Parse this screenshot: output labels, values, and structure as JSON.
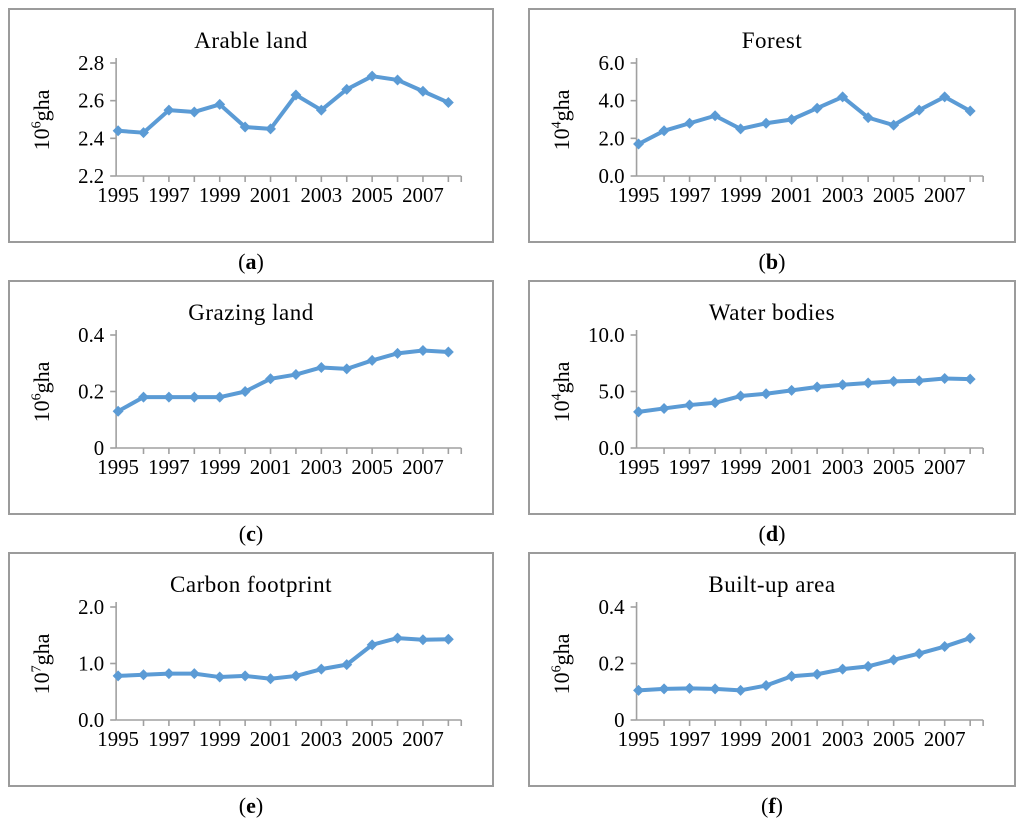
{
  "style": {
    "line_color": "#5B9BD5",
    "axis_color": "#a0a0a0",
    "border_color": "#9b9b9b",
    "text_color": "#000000"
  },
  "figure": {
    "caption_open": "(",
    "caption_close": ")"
  },
  "chart_data": [
    {
      "type": "line",
      "title": "Arable land",
      "caption_letter": "a",
      "ylabel_base": "10",
      "ylabel_exp": "6",
      "ylabel_unit": "gha",
      "x": [
        1995,
        1996,
        1997,
        1998,
        1999,
        2000,
        2001,
        2002,
        2003,
        2004,
        2005,
        2006,
        2007,
        2008
      ],
      "x_labels": [
        "1995",
        "1997",
        "1999",
        "2001",
        "2003",
        "2005",
        "2007"
      ],
      "values": [
        2.44,
        2.43,
        2.55,
        2.54,
        2.58,
        2.46,
        2.45,
        2.63,
        2.55,
        2.66,
        2.73,
        2.71,
        2.65,
        2.59
      ],
      "ylim": [
        2.2,
        2.8
      ],
      "ytick_values": [
        2.2,
        2.4,
        2.6,
        2.8
      ],
      "ytick_labels": [
        "2.2",
        "2.4",
        "2.6",
        "2.8"
      ],
      "grid": false,
      "legend": "none"
    },
    {
      "type": "line",
      "title": "Forest",
      "caption_letter": "b",
      "ylabel_base": "10",
      "ylabel_exp": "4",
      "ylabel_unit": "gha",
      "x": [
        1995,
        1996,
        1997,
        1998,
        1999,
        2000,
        2001,
        2002,
        2003,
        2004,
        2005,
        2006,
        2007,
        2008
      ],
      "x_labels": [
        "1995",
        "1997",
        "1999",
        "2001",
        "2003",
        "2005",
        "2007"
      ],
      "values": [
        1.7,
        2.4,
        2.8,
        3.2,
        2.5,
        2.8,
        3.0,
        3.6,
        4.2,
        3.1,
        2.7,
        3.5,
        4.2,
        3.45
      ],
      "ylim": [
        0,
        6
      ],
      "ytick_values": [
        0,
        2,
        4,
        6
      ],
      "ytick_labels": [
        "0.0",
        "2.0",
        "4.0",
        "6.0"
      ],
      "grid": false,
      "legend": "none"
    },
    {
      "type": "line",
      "title": "Grazing land",
      "caption_letter": "c",
      "ylabel_base": "10",
      "ylabel_exp": "6",
      "ylabel_unit": "gha",
      "x": [
        1995,
        1996,
        1997,
        1998,
        1999,
        2000,
        2001,
        2002,
        2003,
        2004,
        2005,
        2006,
        2007,
        2008
      ],
      "x_labels": [
        "1995",
        "1997",
        "1999",
        "2001",
        "2003",
        "2005",
        "2007"
      ],
      "values": [
        0.13,
        0.18,
        0.18,
        0.18,
        0.18,
        0.2,
        0.245,
        0.26,
        0.285,
        0.28,
        0.31,
        0.335,
        0.345,
        0.34
      ],
      "ylim": [
        0,
        0.4
      ],
      "ytick_values": [
        0,
        0.2,
        0.4
      ],
      "ytick_labels": [
        "0",
        "0.2",
        "0.4"
      ],
      "grid": false,
      "legend": "none"
    },
    {
      "type": "line",
      "title": "Water bodies",
      "caption_letter": "d",
      "ylabel_base": "10",
      "ylabel_exp": "4",
      "ylabel_unit": "gha",
      "x": [
        1995,
        1996,
        1997,
        1998,
        1999,
        2000,
        2001,
        2002,
        2003,
        2004,
        2005,
        2006,
        2007,
        2008
      ],
      "x_labels": [
        "1995",
        "1997",
        "1999",
        "2001",
        "2003",
        "2005",
        "2007"
      ],
      "values": [
        3.2,
        3.5,
        3.8,
        4.0,
        4.6,
        4.8,
        5.1,
        5.4,
        5.6,
        5.75,
        5.9,
        5.95,
        6.15,
        6.1
      ],
      "ylim": [
        0,
        10
      ],
      "ytick_values": [
        0,
        5,
        10
      ],
      "ytick_labels": [
        "0.0",
        "5.0",
        "10.0"
      ],
      "grid": false,
      "legend": "none"
    },
    {
      "type": "line",
      "title": "Carbon footprint",
      "caption_letter": "e",
      "ylabel_base": "10",
      "ylabel_exp": "7",
      "ylabel_unit": "gha",
      "x": [
        1995,
        1996,
        1997,
        1998,
        1999,
        2000,
        2001,
        2002,
        2003,
        2004,
        2005,
        2006,
        2007,
        2008
      ],
      "x_labels": [
        "1995",
        "1997",
        "1999",
        "2001",
        "2003",
        "2005",
        "2007"
      ],
      "values": [
        0.78,
        0.8,
        0.82,
        0.82,
        0.76,
        0.78,
        0.73,
        0.78,
        0.9,
        0.98,
        1.33,
        1.45,
        1.42,
        1.43
      ],
      "ylim": [
        0,
        2
      ],
      "ytick_values": [
        0,
        1,
        2
      ],
      "ytick_labels": [
        "0.0",
        "1.0",
        "2.0"
      ],
      "grid": false,
      "legend": "none"
    },
    {
      "type": "line",
      "title": "Built-up area",
      "caption_letter": "f",
      "ylabel_base": "10",
      "ylabel_exp": "6",
      "ylabel_unit": "gha",
      "x": [
        1995,
        1996,
        1997,
        1998,
        1999,
        2000,
        2001,
        2002,
        2003,
        2004,
        2005,
        2006,
        2007,
        2008
      ],
      "x_labels": [
        "1995",
        "1997",
        "1999",
        "2001",
        "2003",
        "2005",
        "2007"
      ],
      "values": [
        0.105,
        0.11,
        0.112,
        0.11,
        0.105,
        0.122,
        0.155,
        0.162,
        0.18,
        0.19,
        0.213,
        0.235,
        0.26,
        0.29
      ],
      "ylim": [
        0,
        0.4
      ],
      "ytick_values": [
        0,
        0.2,
        0.4
      ],
      "ytick_labels": [
        "0",
        "0.2",
        "0.4"
      ],
      "grid": false,
      "legend": "none"
    }
  ]
}
